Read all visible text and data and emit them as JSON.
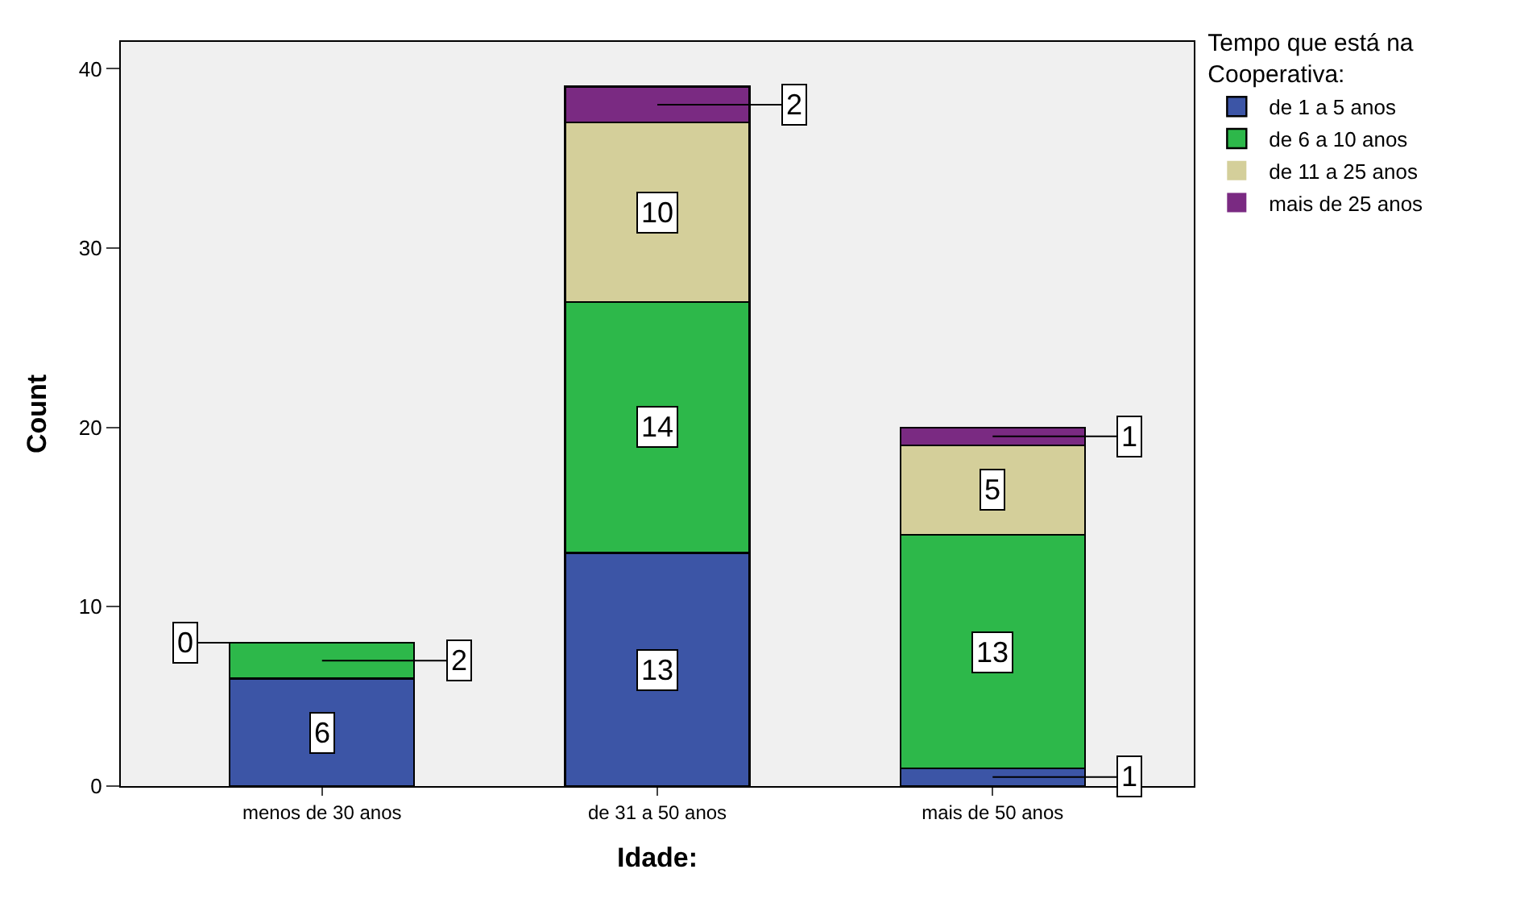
{
  "chart_data": {
    "type": "bar",
    "stacked": true,
    "xlabel": "Idade:",
    "ylabel": "Count",
    "legend_title": "Tempo que está na Cooperativa:",
    "categories": [
      "menos de 30 anos",
      "de 31 a 50 anos",
      "mais de 50 anos"
    ],
    "series": [
      {
        "name": "de 1 a 5 anos",
        "color": "#3c55a6",
        "values": [
          6,
          13,
          1
        ]
      },
      {
        "name": "de 6 a 10 anos",
        "color": "#2db84a",
        "values": [
          2,
          14,
          13
        ]
      },
      {
        "name": "de 11 a 25 anos",
        "color": "#d4cf9a",
        "values": [
          0,
          10,
          5
        ],
        "value_labels": [
          "0",
          "10",
          "5"
        ]
      },
      {
        "name": "mais de 25 anos",
        "color": "#7a2a82",
        "values": [
          0,
          2,
          1
        ],
        "value_labels": [
          null,
          "2",
          "1"
        ]
      }
    ],
    "ylim": [
      0,
      41.5
    ],
    "yticks": [
      0,
      10,
      20,
      30,
      40
    ],
    "grid": false,
    "legend": "top right",
    "data_labels": true
  }
}
